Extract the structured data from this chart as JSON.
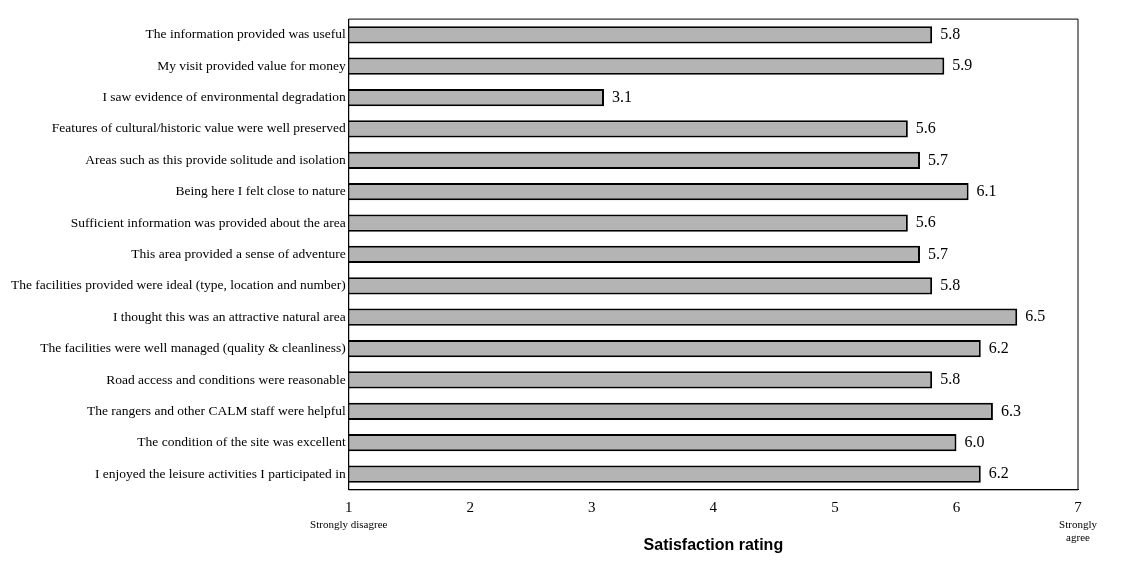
{
  "chart_data": {
    "type": "bar",
    "orientation": "horizontal",
    "xlabel": "Satisfaction rating",
    "categories": [
      "The information provided was useful",
      "My visit provided value for money",
      "I saw evidence of environmental degradation",
      "Features of cultural/historic value were well preserved",
      "Areas such as this provide solitude and isolation",
      "Being here I felt close to nature",
      "Sufficient information was provided about the area",
      "This area provided a sense of adventure",
      "The facilities provided were ideal (type, location and number)",
      "I thought this was an attractive natural area",
      "The facilities were well managed (quality & cleanliness)",
      "Road access and conditions were reasonable",
      "The rangers and other CALM staff were helpful",
      "The condition of the site was excellent",
      "I enjoyed the leisure activities I participated in"
    ],
    "values": [
      5.8,
      5.9,
      3.1,
      5.6,
      5.7,
      6.1,
      5.6,
      5.7,
      5.8,
      6.5,
      6.2,
      5.8,
      6.3,
      6.0,
      6.2
    ],
    "value_labels": [
      "5.8",
      "5.9",
      "3.1",
      "5.6",
      "5.7",
      "6.1",
      "5.6",
      "5.7",
      "5.8",
      "6.5",
      "6.2",
      "5.8",
      "6.3",
      "6.0",
      "6.2"
    ],
    "color": "#b4b4b4",
    "xlim": [
      1,
      7
    ],
    "xticks": [
      1,
      2,
      3,
      4,
      5,
      6,
      7
    ],
    "grid": false,
    "legend": false,
    "annotations": [
      "Strongly disagree",
      "Strongly agree"
    ]
  }
}
